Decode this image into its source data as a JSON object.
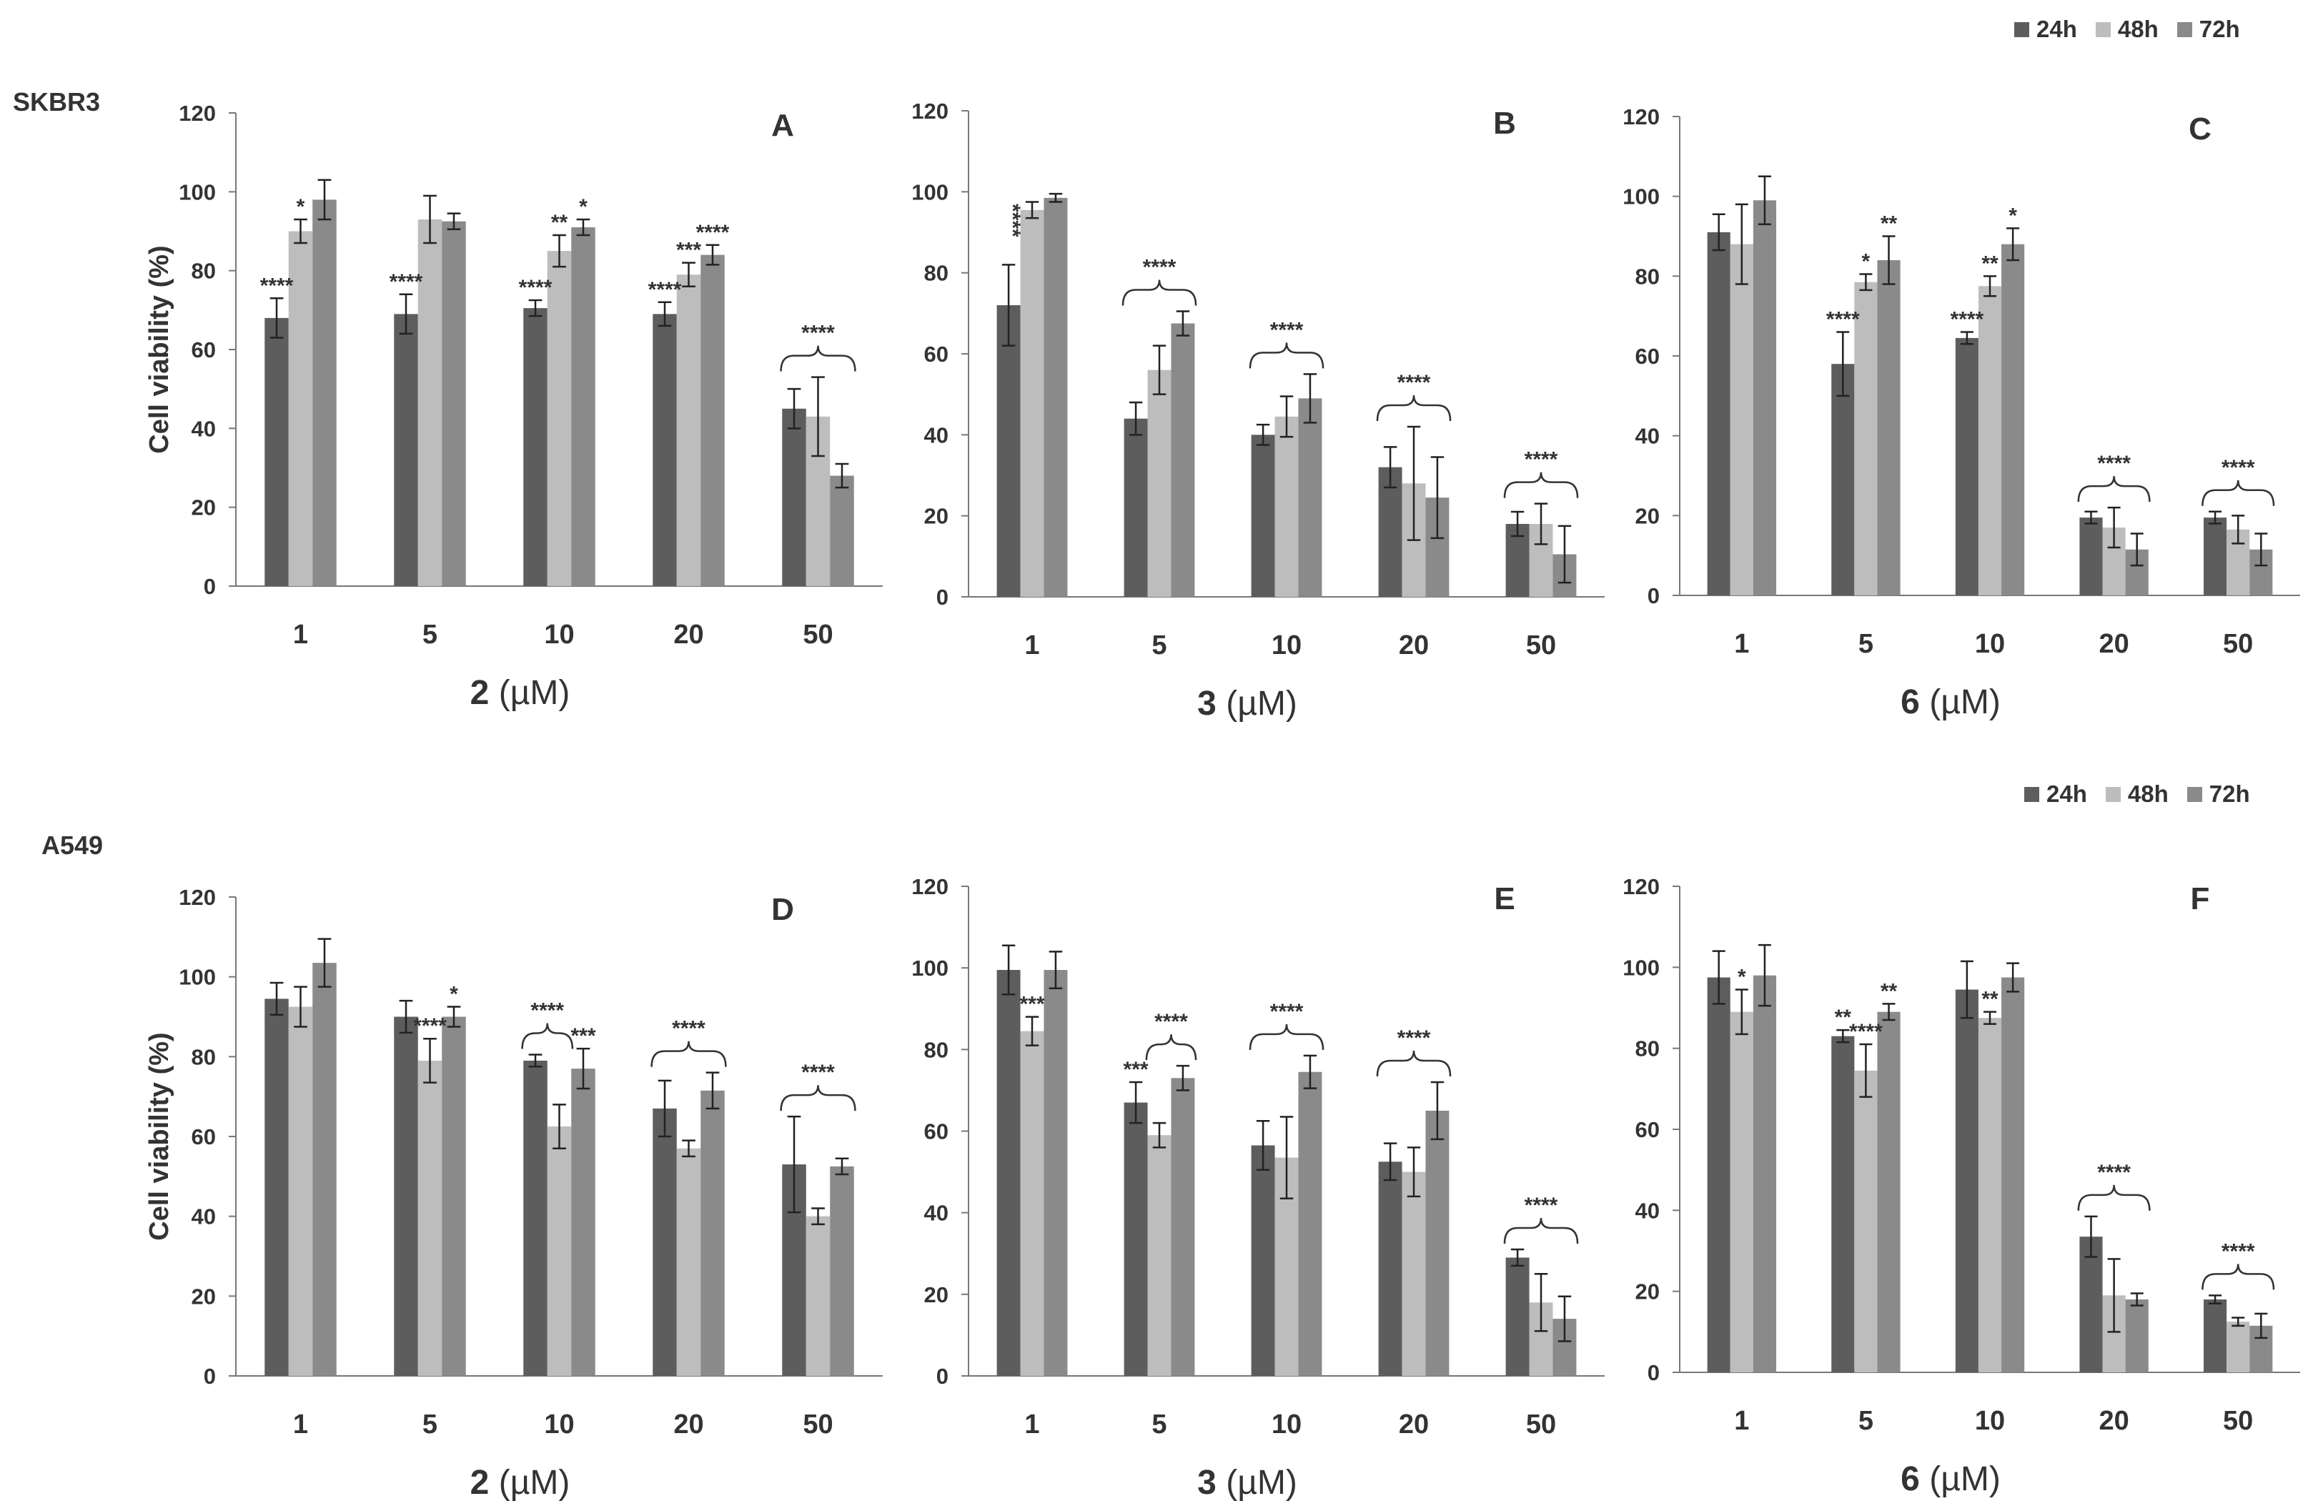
{
  "row_labels": {
    "top": "SKBR3",
    "bottom": "A549"
  },
  "legend": [
    {
      "label": "24h",
      "color": "#5d5d5d"
    },
    {
      "label": "48h",
      "color": "#bdbdbd"
    },
    {
      "label": "72h",
      "color": "#8a8a8a"
    }
  ],
  "chart_data": [
    {
      "type": "bar",
      "letter": "A",
      "compound": "2",
      "unit": " (µM)",
      "ylabel": "Cell viability (%)",
      "ylim": [
        0,
        120
      ],
      "yticks": [
        0,
        20,
        40,
        60,
        80,
        100,
        120
      ],
      "categories": [
        "1",
        "5",
        "10",
        "20",
        "50"
      ],
      "series": [
        {
          "name": "24h",
          "values": [
            68,
            69,
            70.5,
            69,
            45
          ],
          "errors": [
            5,
            5,
            2,
            3,
            5
          ]
        },
        {
          "name": "48h",
          "values": [
            90,
            93,
            85,
            79,
            43
          ],
          "errors": [
            3,
            6,
            4,
            3,
            10
          ]
        },
        {
          "name": "72h",
          "values": [
            98,
            92.5,
            91,
            84,
            28
          ],
          "errors": [
            5,
            2,
            2,
            2.5,
            3
          ]
        }
      ],
      "annotations": [
        {
          "cat": 0,
          "series": 0,
          "text": "****"
        },
        {
          "cat": 0,
          "series": 1,
          "text": "*"
        },
        {
          "cat": 1,
          "series": 0,
          "text": "****"
        },
        {
          "cat": 2,
          "series": 0,
          "text": "****"
        },
        {
          "cat": 2,
          "series": 1,
          "text": "**"
        },
        {
          "cat": 2,
          "series": 2,
          "text": "*"
        },
        {
          "cat": 3,
          "series": 0,
          "text": "****"
        },
        {
          "cat": 3,
          "series": 1,
          "text": "***"
        },
        {
          "cat": 3,
          "series": 2,
          "text": "****"
        }
      ],
      "brackets": [
        {
          "cat": 4,
          "text": "****"
        }
      ]
    },
    {
      "type": "bar",
      "letter": "B",
      "compound": "3",
      "unit": " (µM)",
      "ylabel": "",
      "ylim": [
        0,
        120
      ],
      "yticks": [
        0,
        20,
        40,
        60,
        80,
        100,
        120
      ],
      "categories": [
        "1",
        "5",
        "10",
        "20",
        "50"
      ],
      "series": [
        {
          "name": "24h",
          "values": [
            72,
            44,
            40,
            32,
            18
          ],
          "errors": [
            10,
            4,
            2.5,
            5,
            3
          ]
        },
        {
          "name": "48h",
          "values": [
            95.5,
            56,
            44.5,
            28,
            18
          ],
          "errors": [
            2,
            6,
            5,
            14,
            5
          ]
        },
        {
          "name": "72h",
          "values": [
            98.5,
            67.5,
            49,
            24.5,
            10.5
          ],
          "errors": [
            1,
            3,
            6,
            10,
            7
          ]
        }
      ],
      "annotations": [
        {
          "cat": 0,
          "series": 0,
          "text": "****",
          "vertical": true
        }
      ],
      "brackets": [
        {
          "cat": 1,
          "text": "****"
        },
        {
          "cat": 2,
          "text": "****"
        },
        {
          "cat": 3,
          "text": "****"
        },
        {
          "cat": 4,
          "text": "****"
        }
      ]
    },
    {
      "type": "bar",
      "letter": "C",
      "compound": "6",
      "unit": " (µM)",
      "ylabel": "",
      "ylim": [
        0,
        120
      ],
      "yticks": [
        0,
        20,
        40,
        60,
        80,
        100,
        120
      ],
      "categories": [
        "1",
        "5",
        "10",
        "20",
        "50"
      ],
      "series": [
        {
          "name": "24h",
          "values": [
            91,
            58,
            64.5,
            19.5,
            19.5
          ],
          "errors": [
            4.5,
            8,
            1.5,
            1.5,
            1.5
          ]
        },
        {
          "name": "48h",
          "values": [
            88,
            78.5,
            77.5,
            17,
            16.5
          ],
          "errors": [
            10,
            2,
            2.5,
            5,
            3.5
          ]
        },
        {
          "name": "72h",
          "values": [
            99,
            84,
            88,
            11.5,
            11.5
          ],
          "errors": [
            6,
            6,
            4,
            4,
            4
          ]
        }
      ],
      "annotations": [
        {
          "cat": 1,
          "series": 0,
          "text": "****"
        },
        {
          "cat": 1,
          "series": 1,
          "text": "*"
        },
        {
          "cat": 1,
          "series": 2,
          "text": "**"
        },
        {
          "cat": 2,
          "series": 0,
          "text": "****"
        },
        {
          "cat": 2,
          "series": 1,
          "text": "**"
        },
        {
          "cat": 2,
          "series": 2,
          "text": "*"
        }
      ],
      "brackets": [
        {
          "cat": 3,
          "text": "****"
        },
        {
          "cat": 4,
          "text": "****"
        }
      ]
    },
    {
      "type": "bar",
      "letter": "D",
      "compound": "2",
      "unit": " (µM)",
      "ylabel": "Cell viability (%)",
      "ylim": [
        0,
        120
      ],
      "yticks": [
        0,
        20,
        40,
        60,
        80,
        100,
        120
      ],
      "categories": [
        "1",
        "5",
        "10",
        "20",
        "50"
      ],
      "series": [
        {
          "name": "24h",
          "values": [
            94.5,
            90,
            79,
            67,
            53
          ],
          "errors": [
            4,
            4,
            1.5,
            7,
            12
          ]
        },
        {
          "name": "48h",
          "values": [
            92.5,
            79,
            62.5,
            57,
            40
          ],
          "errors": [
            5,
            5.5,
            5.5,
            2,
            2
          ]
        },
        {
          "name": "72h",
          "values": [
            103.5,
            90,
            77,
            71.5,
            52.5
          ],
          "errors": [
            6,
            2.5,
            5,
            4.5,
            2
          ]
        }
      ],
      "annotations": [
        {
          "cat": 1,
          "series": 1,
          "text": "****"
        },
        {
          "cat": 1,
          "series": 2,
          "text": "*"
        },
        {
          "cat": 2,
          "series": 2,
          "text": "***"
        }
      ],
      "brackets": [
        {
          "cat": 2,
          "text": "****",
          "span": [
            0,
            1
          ]
        },
        {
          "cat": 3,
          "text": "****"
        },
        {
          "cat": 4,
          "text": "****"
        }
      ]
    },
    {
      "type": "bar",
      "letter": "E",
      "compound": "3",
      "unit": " (µM)",
      "ylabel": "",
      "ylim": [
        0,
        120
      ],
      "yticks": [
        0,
        20,
        40,
        60,
        80,
        100,
        120
      ],
      "categories": [
        "1",
        "5",
        "10",
        "20",
        "50"
      ],
      "series": [
        {
          "name": "24h",
          "values": [
            99.5,
            67,
            56.5,
            52.5,
            29
          ],
          "errors": [
            6,
            5,
            6,
            4.5,
            2
          ]
        },
        {
          "name": "48h",
          "values": [
            84.5,
            59,
            53.5,
            50,
            18
          ],
          "errors": [
            3.5,
            3,
            10,
            6,
            7
          ]
        },
        {
          "name": "72h",
          "values": [
            99.5,
            73,
            74.5,
            65,
            14
          ],
          "errors": [
            4.5,
            3,
            4,
            7,
            5.5
          ]
        }
      ],
      "annotations": [
        {
          "cat": 0,
          "series": 1,
          "text": "***"
        },
        {
          "cat": 1,
          "series": 0,
          "text": "***"
        }
      ],
      "brackets": [
        {
          "cat": 1,
          "text": "****",
          "span": [
            1,
            2
          ]
        },
        {
          "cat": 2,
          "text": "****"
        },
        {
          "cat": 3,
          "text": "****"
        },
        {
          "cat": 4,
          "text": "****"
        }
      ]
    },
    {
      "type": "bar",
      "letter": "F",
      "compound": "6",
      "unit": " (µM)",
      "ylabel": "",
      "ylim": [
        0,
        120
      ],
      "yticks": [
        0,
        20,
        40,
        60,
        80,
        100,
        120
      ],
      "categories": [
        "1",
        "5",
        "10",
        "20",
        "50"
      ],
      "series": [
        {
          "name": "24h",
          "values": [
            97.5,
            83,
            94.5,
            33.5,
            18
          ],
          "errors": [
            6.5,
            1.5,
            7,
            5,
            1
          ]
        },
        {
          "name": "48h",
          "values": [
            89,
            74.5,
            87.5,
            19,
            12.5
          ],
          "errors": [
            5.5,
            6.5,
            1.5,
            9,
            1
          ]
        },
        {
          "name": "72h",
          "values": [
            98,
            89,
            97.5,
            18,
            11.5
          ],
          "errors": [
            7.5,
            2,
            3.5,
            1.5,
            3
          ]
        }
      ],
      "annotations": [
        {
          "cat": 0,
          "series": 1,
          "text": "*"
        },
        {
          "cat": 1,
          "series": 0,
          "text": "**"
        },
        {
          "cat": 1,
          "series": 1,
          "text": "****"
        },
        {
          "cat": 1,
          "series": 2,
          "text": "**"
        },
        {
          "cat": 2,
          "series": 1,
          "text": "**"
        }
      ],
      "brackets": [
        {
          "cat": 3,
          "text": "****"
        },
        {
          "cat": 4,
          "text": "****"
        }
      ]
    }
  ]
}
